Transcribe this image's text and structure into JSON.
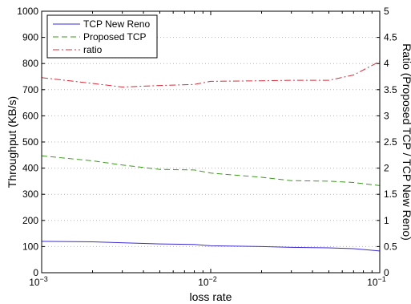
{
  "chart_data": {
    "type": "line",
    "title": "",
    "xlabel": "loss rate",
    "ylabel": "Throughput (KB/s)",
    "y2label": "Ratio (Proposed TCP / TCP New Reno)",
    "xscale": "log",
    "xlim": [
      0.001,
      0.1
    ],
    "ylim": [
      0,
      1000
    ],
    "y2lim": [
      0,
      5
    ],
    "grid": "horizontal dotted",
    "legend_position": "top-left",
    "x_ticks": [
      {
        "value": 0.001,
        "base": "10",
        "exp": "−3"
      },
      {
        "value": 0.01,
        "base": "10",
        "exp": "−2"
      },
      {
        "value": 0.1,
        "base": "10",
        "exp": "−1"
      }
    ],
    "y_ticks": [
      "0",
      "100",
      "200",
      "300",
      "400",
      "500",
      "600",
      "700",
      "800",
      "900",
      "1000"
    ],
    "y2_ticks": [
      "0",
      "0.5",
      "1",
      "1.5",
      "2",
      "2.5",
      "3",
      "3.5",
      "4",
      "4.5",
      "5"
    ],
    "series": [
      {
        "name": "TCP New Reno",
        "axis": "left",
        "color": "#3b2bd6",
        "dash": "solid",
        "points": [
          [
            0.001,
            120
          ],
          [
            0.002,
            118
          ],
          [
            0.005,
            110
          ],
          [
            0.008,
            108
          ],
          [
            0.01,
            103
          ],
          [
            0.02,
            100
          ],
          [
            0.03,
            97
          ],
          [
            0.05,
            95
          ],
          [
            0.07,
            92
          ],
          [
            0.1,
            83
          ]
        ]
      },
      {
        "name": "Proposed TCP",
        "axis": "left",
        "color": "#3c9a1e",
        "dash": "dashed",
        "points": [
          [
            0.001,
            447
          ],
          [
            0.002,
            428
          ],
          [
            0.003,
            412
          ],
          [
            0.005,
            395
          ],
          [
            0.008,
            393
          ],
          [
            0.01,
            381
          ],
          [
            0.02,
            365
          ],
          [
            0.03,
            352
          ],
          [
            0.05,
            350
          ],
          [
            0.07,
            345
          ],
          [
            0.1,
            333
          ]
        ]
      },
      {
        "name": "ratio",
        "axis": "right",
        "color": "#d42f3c",
        "dash": "dashdot",
        "points": [
          [
            0.001,
            3.73
          ],
          [
            0.002,
            3.62
          ],
          [
            0.003,
            3.55
          ],
          [
            0.005,
            3.58
          ],
          [
            0.008,
            3.6
          ],
          [
            0.01,
            3.66
          ],
          [
            0.02,
            3.67
          ],
          [
            0.03,
            3.68
          ],
          [
            0.05,
            3.68
          ],
          [
            0.07,
            3.78
          ],
          [
            0.1,
            4.04
          ]
        ]
      }
    ]
  }
}
